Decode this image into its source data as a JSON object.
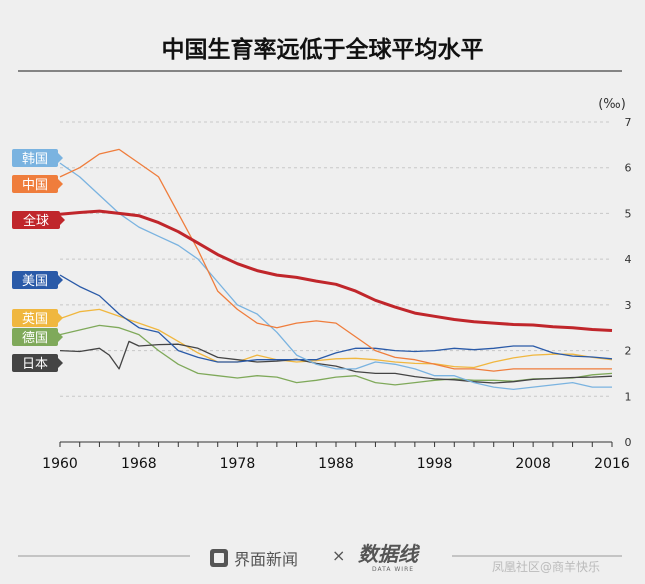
{
  "title": "中国生育率远低于全球平均水平",
  "footer": {
    "brand": "界面新闻",
    "times": "×",
    "logo": "数据线",
    "logo_sub": "DATA WIRE",
    "credit": "凤凰社区@商羊快乐"
  },
  "colors": {
    "韩国": "#7ab3e0",
    "中国": "#ef7d3c",
    "全球": "#c0262b",
    "美国": "#2a5aa8",
    "英国": "#f0b73f",
    "德国": "#7fa95a",
    "日本": "#444444"
  },
  "chart_data": {
    "type": "line",
    "title": "中国生育率远低于全球平均水平",
    "xlabel": "",
    "ylabel": "(‰)",
    "xlim": [
      1960,
      2016
    ],
    "ylim": [
      0,
      7
    ],
    "x_ticks": [
      1960,
      1968,
      1978,
      1988,
      1998,
      2008,
      2016
    ],
    "y_ticks": [
      0,
      1,
      2,
      3,
      4,
      5,
      6,
      7
    ],
    "grid": "horizontal dashed",
    "legend": "left, labels at series start",
    "series": [
      {
        "name": "韩国",
        "x": [
          1960,
          1962,
          1964,
          1966,
          1968,
          1970,
          1972,
          1974,
          1976,
          1978,
          1980,
          1982,
          1984,
          1986,
          1988,
          1990,
          1992,
          1994,
          1996,
          1998,
          2000,
          2002,
          2004,
          2006,
          2008,
          2010,
          2012,
          2014,
          2016
        ],
        "y": [
          6.1,
          5.8,
          5.4,
          5.0,
          4.7,
          4.5,
          4.3,
          4.0,
          3.5,
          3.0,
          2.8,
          2.4,
          1.9,
          1.7,
          1.6,
          1.6,
          1.75,
          1.7,
          1.6,
          1.45,
          1.45,
          1.3,
          1.2,
          1.15,
          1.2,
          1.25,
          1.3,
          1.2,
          1.2
        ]
      },
      {
        "name": "中国",
        "x": [
          1960,
          1962,
          1964,
          1966,
          1968,
          1970,
          1972,
          1974,
          1976,
          1978,
          1980,
          1982,
          1984,
          1986,
          1988,
          1990,
          1992,
          1994,
          1996,
          1998,
          2000,
          2002,
          2004,
          2006,
          2008,
          2010,
          2012,
          2014,
          2016
        ],
        "y": [
          5.8,
          6.0,
          6.3,
          6.4,
          6.1,
          5.8,
          5.0,
          4.2,
          3.3,
          2.9,
          2.6,
          2.5,
          2.6,
          2.65,
          2.6,
          2.3,
          2.0,
          1.85,
          1.8,
          1.7,
          1.6,
          1.6,
          1.55,
          1.6,
          1.6,
          1.6,
          1.6,
          1.6,
          1.6
        ]
      },
      {
        "name": "全球",
        "x": [
          1960,
          1962,
          1964,
          1966,
          1968,
          1970,
          1972,
          1974,
          1976,
          1978,
          1980,
          1982,
          1984,
          1986,
          1988,
          1990,
          1992,
          1994,
          1996,
          1998,
          2000,
          2002,
          2004,
          2006,
          2008,
          2010,
          2012,
          2014,
          2016
        ],
        "y": [
          4.98,
          5.02,
          5.05,
          5.0,
          4.95,
          4.8,
          4.6,
          4.35,
          4.1,
          3.9,
          3.75,
          3.65,
          3.6,
          3.52,
          3.45,
          3.3,
          3.1,
          2.95,
          2.82,
          2.75,
          2.68,
          2.63,
          2.6,
          2.57,
          2.56,
          2.52,
          2.5,
          2.46,
          2.44
        ]
      },
      {
        "name": "美国",
        "x": [
          1960,
          1962,
          1964,
          1966,
          1968,
          1970,
          1972,
          1974,
          1976,
          1978,
          1980,
          1982,
          1984,
          1986,
          1988,
          1990,
          1992,
          1994,
          1996,
          1998,
          2000,
          2002,
          2004,
          2006,
          2008,
          2010,
          2012,
          2014,
          2016
        ],
        "y": [
          3.65,
          3.4,
          3.2,
          2.8,
          2.5,
          2.4,
          2.0,
          1.85,
          1.75,
          1.75,
          1.8,
          1.8,
          1.8,
          1.8,
          1.95,
          2.05,
          2.05,
          2.0,
          1.98,
          2.0,
          2.05,
          2.02,
          2.05,
          2.1,
          2.1,
          1.95,
          1.88,
          1.86,
          1.82
        ]
      },
      {
        "name": "英国",
        "x": [
          1960,
          1962,
          1964,
          1966,
          1968,
          1970,
          1972,
          1974,
          1976,
          1978,
          1980,
          1982,
          1984,
          1986,
          1988,
          1990,
          1992,
          1994,
          1996,
          1998,
          2000,
          2002,
          2004,
          2006,
          2008,
          2010,
          2012,
          2014,
          2016
        ],
        "y": [
          2.7,
          2.85,
          2.9,
          2.75,
          2.6,
          2.45,
          2.2,
          1.95,
          1.75,
          1.75,
          1.9,
          1.8,
          1.75,
          1.78,
          1.82,
          1.83,
          1.8,
          1.75,
          1.72,
          1.71,
          1.65,
          1.63,
          1.75,
          1.84,
          1.9,
          1.92,
          1.92,
          1.85,
          1.8
        ]
      },
      {
        "name": "德国",
        "x": [
          1960,
          1962,
          1964,
          1966,
          1968,
          1970,
          1972,
          1974,
          1976,
          1978,
          1980,
          1982,
          1984,
          1986,
          1988,
          1990,
          1992,
          1994,
          1996,
          1998,
          2000,
          2002,
          2004,
          2006,
          2008,
          2010,
          2012,
          2014,
          2016
        ],
        "y": [
          2.35,
          2.45,
          2.55,
          2.5,
          2.35,
          2.0,
          1.7,
          1.5,
          1.45,
          1.4,
          1.45,
          1.42,
          1.3,
          1.35,
          1.42,
          1.45,
          1.3,
          1.25,
          1.3,
          1.35,
          1.38,
          1.35,
          1.35,
          1.33,
          1.38,
          1.39,
          1.4,
          1.47,
          1.5
        ]
      },
      {
        "name": "日本",
        "x": [
          1960,
          1962,
          1964,
          1965,
          1966,
          1967,
          1968,
          1970,
          1972,
          1974,
          1976,
          1978,
          1980,
          1982,
          1984,
          1986,
          1988,
          1990,
          1992,
          1994,
          1996,
          1998,
          2000,
          2002,
          2004,
          2006,
          2008,
          2010,
          2012,
          2014,
          2016
        ],
        "y": [
          2.0,
          1.98,
          2.05,
          1.9,
          1.6,
          2.2,
          2.1,
          2.13,
          2.14,
          2.05,
          1.85,
          1.8,
          1.75,
          1.77,
          1.81,
          1.72,
          1.66,
          1.54,
          1.5,
          1.5,
          1.43,
          1.38,
          1.36,
          1.32,
          1.29,
          1.32,
          1.37,
          1.39,
          1.41,
          1.42,
          1.44
        ]
      }
    ]
  }
}
